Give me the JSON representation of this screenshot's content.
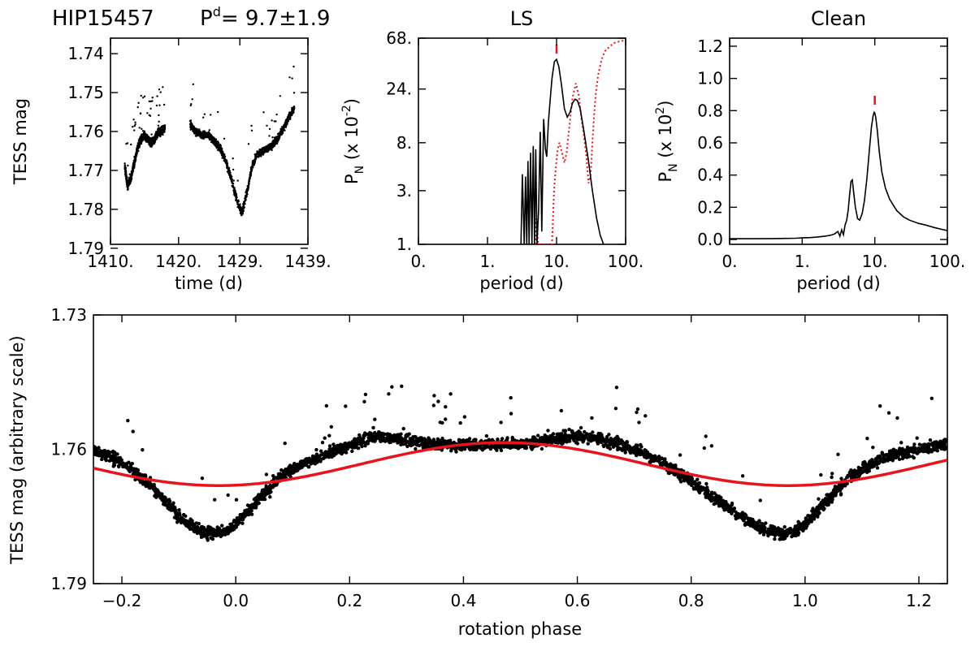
{
  "figure": {
    "star": "HIP15457",
    "period_symbol": "P",
    "period_superscript": "d",
    "period_text": "= 9.7±1.9"
  },
  "colors": {
    "data_points": "#000000",
    "model_fit": "#e8141b",
    "ls_window": "#e8141b",
    "peak_marker": "#e8141b"
  },
  "chart_data": [
    {
      "id": "light-curve",
      "type": "scatter",
      "title": "",
      "xlabel": "time (d)",
      "ylabel": "TESS mag",
      "xlim": [
        1410,
        1439
      ],
      "ylim": [
        1.789,
        1.736
      ],
      "y_inverted": true,
      "xticks": [
        1410,
        1420,
        1429,
        1439
      ],
      "xticklabels": [
        "1410.",
        "1420.",
        "1429.",
        "1439."
      ],
      "yticks": [
        1.74,
        1.75,
        1.76,
        1.77,
        1.78,
        1.79
      ],
      "yticklabels": [
        "1.74",
        "1.75",
        "1.76",
        "1.77",
        "1.78",
        "1.79"
      ],
      "series": [
        {
          "segments": [
            {
              "x": [
                1412.1,
                1412.5,
                1413.0,
                1413.5,
                1414.0,
                1414.5,
                1415.0,
                1415.5,
                1416.0,
                1416.5,
                1417.0,
                1417.5,
                1418.0
              ],
              "y": [
                1.769,
                1.774,
                1.772,
                1.768,
                1.764,
                1.762,
                1.761,
                1.762,
                1.763,
                1.762,
                1.76,
                1.76,
                1.759
              ]
            },
            {
              "x": [
                1421.7,
                1422.5,
                1423.5,
                1424.5,
                1425.5,
                1426.3,
                1427.0,
                1427.7,
                1428.3,
                1428.8,
                1429.3,
                1430.0,
                1430.8,
                1431.5,
                1432.5,
                1433.5,
                1434.5,
                1435.5,
                1436.3,
                1437.0
              ],
              "y": [
                1.758,
                1.76,
                1.761,
                1.761,
                1.763,
                1.765,
                1.768,
                1.772,
                1.776,
                1.779,
                1.781,
                1.776,
                1.769,
                1.766,
                1.765,
                1.764,
                1.762,
                1.759,
                1.756,
                1.754
              ]
            }
          ]
        }
      ]
    },
    {
      "id": "ls-periodogram",
      "type": "line",
      "title": "LS",
      "xlabel": "period (d)",
      "ylabel_main": "P",
      "ylabel_sub": "N",
      "ylabel_rest": " (x 10",
      "ylabel_sup": "-2",
      "ylabel_end": ")",
      "x_scale": "log",
      "y_scale": "log",
      "xlim": [
        0.1,
        100
      ],
      "ylim": [
        1,
        68
      ],
      "xticks": [
        0.1,
        1,
        10,
        100
      ],
      "xticklabels": [
        "0.",
        "1.",
        "10.",
        "100."
      ],
      "yticks": [
        1,
        3,
        8,
        24,
        68
      ],
      "yticklabels": [
        "1.",
        "3.",
        "8.",
        "24.",
        "68."
      ],
      "series": [
        {
          "style": "solid",
          "x": [
            3.05,
            3.2,
            3.4,
            3.55,
            3.7,
            3.85,
            4.0,
            4.2,
            4.4,
            4.6,
            4.8,
            5.0,
            5.2,
            5.5,
            5.8,
            6.1,
            6.5,
            6.9,
            7.2,
            7.6,
            8.0,
            8.6,
            9.3,
            10.0,
            10.8,
            11.8,
            13.0,
            14.3,
            15.7,
            17.0,
            18.5,
            20.0,
            22.0,
            25.0,
            29.0,
            33.0,
            38.0,
            43.0,
            48.0
          ],
          "y": [
            1.0,
            4.2,
            1.0,
            4.0,
            1.0,
            5.5,
            1.0,
            6.5,
            1.0,
            7.5,
            1.0,
            7.0,
            1.0,
            2.0,
            10.0,
            1.3,
            13.0,
            7.0,
            6.0,
            12.0,
            18.0,
            30.0,
            42.0,
            44.0,
            38.0,
            26.0,
            16.0,
            13.5,
            15.0,
            18.0,
            19.5,
            19.0,
            16.0,
            10.0,
            5.5,
            3.0,
            1.7,
            1.2,
            1.0
          ]
        },
        {
          "style": "dotted",
          "x": [
            4.9,
            5.1,
            5.4,
            6.0,
            6.6,
            7.2,
            7.8,
            8.6,
            9.2,
            9.8,
            10.4,
            11.0,
            12.0,
            13.0,
            14.0,
            15.5,
            17.0,
            19.0,
            21.0,
            23.0,
            25.0,
            27.0,
            29.0,
            31.0,
            33.0,
            35.0,
            37.0,
            40.0,
            45.0,
            50.0,
            60.0,
            70.0,
            85.0,
            100.0
          ],
          "y": [
            1.0,
            1.7,
            1.0,
            1.0,
            1.0,
            1.0,
            1.0,
            1.0,
            3.0,
            5.0,
            7.0,
            8.0,
            6.5,
            5.3,
            6.5,
            12.0,
            20.0,
            27.0,
            21.0,
            13.0,
            9.0,
            6.0,
            3.5,
            4.0,
            8.0,
            14.0,
            22.0,
            32.0,
            44.0,
            52.0,
            58.0,
            62.0,
            64.0,
            65.0
          ]
        }
      ],
      "peak_marker_x": 10.0
    },
    {
      "id": "clean-periodogram",
      "type": "line",
      "title": "Clean",
      "xlabel": "period (d)",
      "ylabel_main": "P",
      "ylabel_sub": "N",
      "ylabel_rest": " (x 10",
      "ylabel_sup": "2",
      "ylabel_end": ")",
      "x_scale": "log",
      "xlim": [
        0.1,
        100
      ],
      "ylim": [
        -0.03,
        1.25
      ],
      "xticks": [
        0.1,
        1,
        10,
        100
      ],
      "xticklabels": [
        "0.",
        "1.",
        "10.",
        "100."
      ],
      "yticks": [
        0.0,
        0.2,
        0.4,
        0.6,
        0.8,
        1.0,
        1.2
      ],
      "yticklabels": [
        "0.0",
        "0.2",
        "0.4",
        "0.6",
        "0.8",
        "1.0",
        "1.2"
      ],
      "series": [
        {
          "style": "solid",
          "x": [
            0.1,
            0.2,
            0.4,
            0.6,
            0.8,
            1.0,
            1.3,
            1.6,
            2.0,
            2.4,
            2.8,
            3.1,
            3.3,
            3.5,
            3.7,
            3.9,
            4.1,
            4.3,
            4.5,
            4.7,
            4.9,
            5.1,
            5.4,
            5.8,
            6.2,
            6.7,
            7.2,
            7.8,
            8.4,
            9.0,
            9.5,
            9.8,
            10.0,
            10.3,
            10.8,
            11.5,
            12.5,
            14.0,
            16.0,
            20.0,
            25.0,
            30.0,
            40.0,
            50.0,
            65.0,
            80.0,
            100.0
          ],
          "y": [
            0.005,
            0.005,
            0.006,
            0.007,
            0.008,
            0.01,
            0.012,
            0.015,
            0.02,
            0.025,
            0.035,
            0.05,
            0.02,
            0.06,
            0.03,
            0.09,
            0.12,
            0.18,
            0.28,
            0.36,
            0.37,
            0.3,
            0.2,
            0.13,
            0.12,
            0.16,
            0.24,
            0.38,
            0.55,
            0.7,
            0.77,
            0.79,
            0.785,
            0.76,
            0.68,
            0.55,
            0.42,
            0.32,
            0.25,
            0.18,
            0.14,
            0.12,
            0.1,
            0.09,
            0.075,
            0.065,
            0.055
          ]
        }
      ],
      "peak_marker_x": 10.0
    },
    {
      "id": "phased-light-curve",
      "type": "scatter",
      "title": "",
      "xlabel": "rotation phase",
      "ylabel": "TESS mag (arbitrary scale)",
      "xlim": [
        -0.25,
        1.25
      ],
      "ylim": [
        1.79,
        1.73
      ],
      "y_inverted": true,
      "xticks": [
        -0.2,
        0.0,
        0.2,
        0.4,
        0.6,
        0.8,
        1.0,
        1.2
      ],
      "xticklabels": [
        "−0.2",
        "0.0",
        "0.2",
        "0.4",
        "0.6",
        "0.8",
        "1.0",
        "1.2"
      ],
      "yticks": [
        1.73,
        1.76,
        1.79
      ],
      "yticklabels": [
        "1.73",
        "1.76",
        "1.79"
      ],
      "series": [
        {
          "name": "data",
          "x": [
            -0.25,
            -0.2,
            -0.15,
            -0.1,
            -0.07,
            -0.04,
            -0.01,
            0.02,
            0.05,
            0.08,
            0.12,
            0.16,
            0.2,
            0.25,
            0.3,
            0.35,
            0.4,
            0.45,
            0.5,
            0.55,
            0.6,
            0.65,
            0.7,
            0.75,
            0.8,
            0.85,
            0.9,
            0.93,
            0.96,
            0.99,
            1.02,
            1.05,
            1.08,
            1.12,
            1.16,
            1.2,
            1.25
          ],
          "y": [
            1.76,
            1.763,
            1.768,
            1.775,
            1.778,
            1.779,
            1.778,
            1.774,
            1.77,
            1.766,
            1.763,
            1.761,
            1.759,
            1.757,
            1.758,
            1.759,
            1.759,
            1.759,
            1.759,
            1.758,
            1.757,
            1.758,
            1.76,
            1.763,
            1.767,
            1.772,
            1.776,
            1.778,
            1.779,
            1.778,
            1.774,
            1.77,
            1.766,
            1.763,
            1.761,
            1.76,
            1.759
          ]
        },
        {
          "name": "model",
          "style": "solid",
          "mean": 1.7633,
          "amplitude": 0.0048,
          "min_phase": -0.03
        }
      ]
    }
  ]
}
